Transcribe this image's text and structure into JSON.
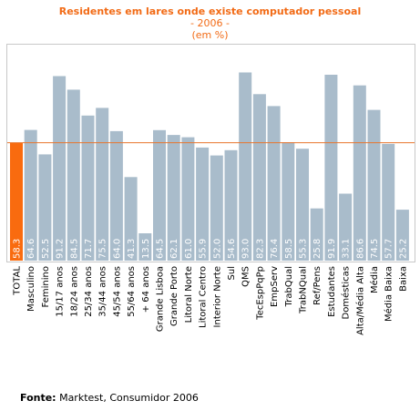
{
  "chart_data": {
    "type": "bar",
    "title": "Residentes em lares onde existe computador pessoal",
    "subtitle": "- 2006 -",
    "unit": "(em %)",
    "categories": [
      "TOTAL",
      "Masculino",
      "Feminino",
      "15/17 anos",
      "18/24 anos",
      "25/34 anos",
      "35/44 anos",
      "45/54 anos",
      "55/64 anos",
      "+ 64 anos",
      "Grande Lisboa",
      "Grande Porto",
      "Litoral Norte",
      "Litoral Centro",
      "Interior Norte",
      "Sul",
      "QMS",
      "TecEspPqPp",
      "EmpServ",
      "TrabQual",
      "TrabNQual",
      "Ref/Pens",
      "Estudantes",
      "Domésticas",
      "Alta/Média Alta",
      "Média",
      "Média Baixa",
      "Baixa"
    ],
    "values": [
      58.3,
      64.6,
      52.5,
      91.2,
      84.5,
      71.7,
      75.5,
      64.0,
      41.3,
      13.5,
      64.5,
      62.1,
      61.0,
      55.9,
      52.0,
      54.6,
      93.0,
      82.3,
      76.4,
      58.5,
      55.3,
      25.8,
      91.9,
      33.1,
      86.6,
      74.5,
      57.7,
      25.2
    ],
    "value_labels": [
      "58.3",
      "64.6",
      "52.5",
      "91.2",
      "84.5",
      "71.7",
      "75.5",
      "64.0",
      "41.3",
      "13.5",
      "64.5",
      "62.1",
      "61.0",
      "55.9",
      "52.0",
      "54.6",
      "93.0",
      "82.3",
      "76.4",
      "58.5",
      "55.3",
      "25.8",
      "91.9",
      "33.1",
      "86.6",
      "74.5",
      "57.7",
      "25.2"
    ],
    "highlight_index": 0,
    "reference_line": 58.3,
    "ylim": [
      0,
      100
    ],
    "grid": false,
    "colors": {
      "bar": "#a9bccb",
      "highlight_bar": "#f96b0f",
      "reference_line": "#e8762e",
      "title": "#f26b16",
      "frame": "#c8c8c8",
      "value_label": "#ffffff"
    }
  },
  "source": {
    "label": "Fonte:",
    "text": " Marktest, Consumidor 2006"
  }
}
